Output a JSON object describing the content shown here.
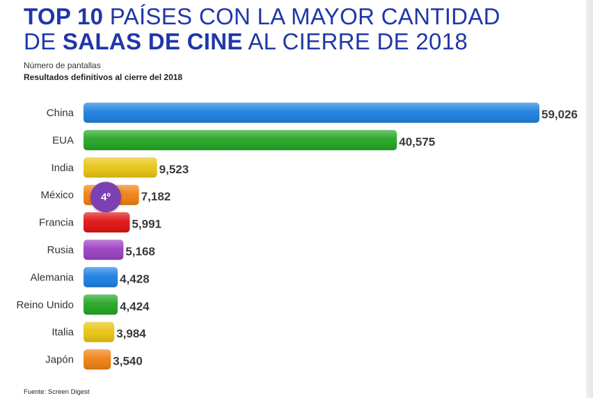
{
  "header": {
    "line1_bold": "TOP 10",
    "line1_rest": " PAÍSES CON LA MAYOR CANTIDAD",
    "line2_start": "DE ",
    "line2_bold": "SALAS DE CINE",
    "line2_rest": " AL CIERRE DE 2018",
    "measure": "Número de pantallas",
    "note": "Resultados definitivos al cierre del 2018"
  },
  "footer": {
    "source": "Fuente: Screen Digest"
  },
  "highlight": {
    "category": "México",
    "badge": "4º",
    "color": "#7b3fb3"
  },
  "chart_data": {
    "type": "bar",
    "orientation": "horizontal",
    "title": "TOP 10 PAÍSES CON LA MAYOR CANTIDAD DE SALAS DE CINE AL CIERRE DE 2018",
    "categories": [
      "China",
      "EUA",
      "India",
      "México",
      "Francia",
      "Rusia",
      "Alemania",
      "Reino Unido",
      "Italia",
      "Japón"
    ],
    "values": [
      59026,
      40575,
      9523,
      7182,
      5991,
      5168,
      4428,
      4424,
      3984,
      3540
    ],
    "value_labels": [
      "59,026",
      "40,575",
      "9,523",
      "7,182",
      "5,991",
      "5,168",
      "4,428",
      "4,424",
      "3,984",
      "3,540"
    ],
    "colors": [
      "#1a7fe0",
      "#22a522",
      "#e8c410",
      "#f07f10",
      "#e01010",
      "#9a3fc0",
      "#1a7fe0",
      "#22a522",
      "#e8c410",
      "#f07f10"
    ],
    "xlim": [
      0,
      59026
    ],
    "grid": false,
    "legend": "none"
  }
}
